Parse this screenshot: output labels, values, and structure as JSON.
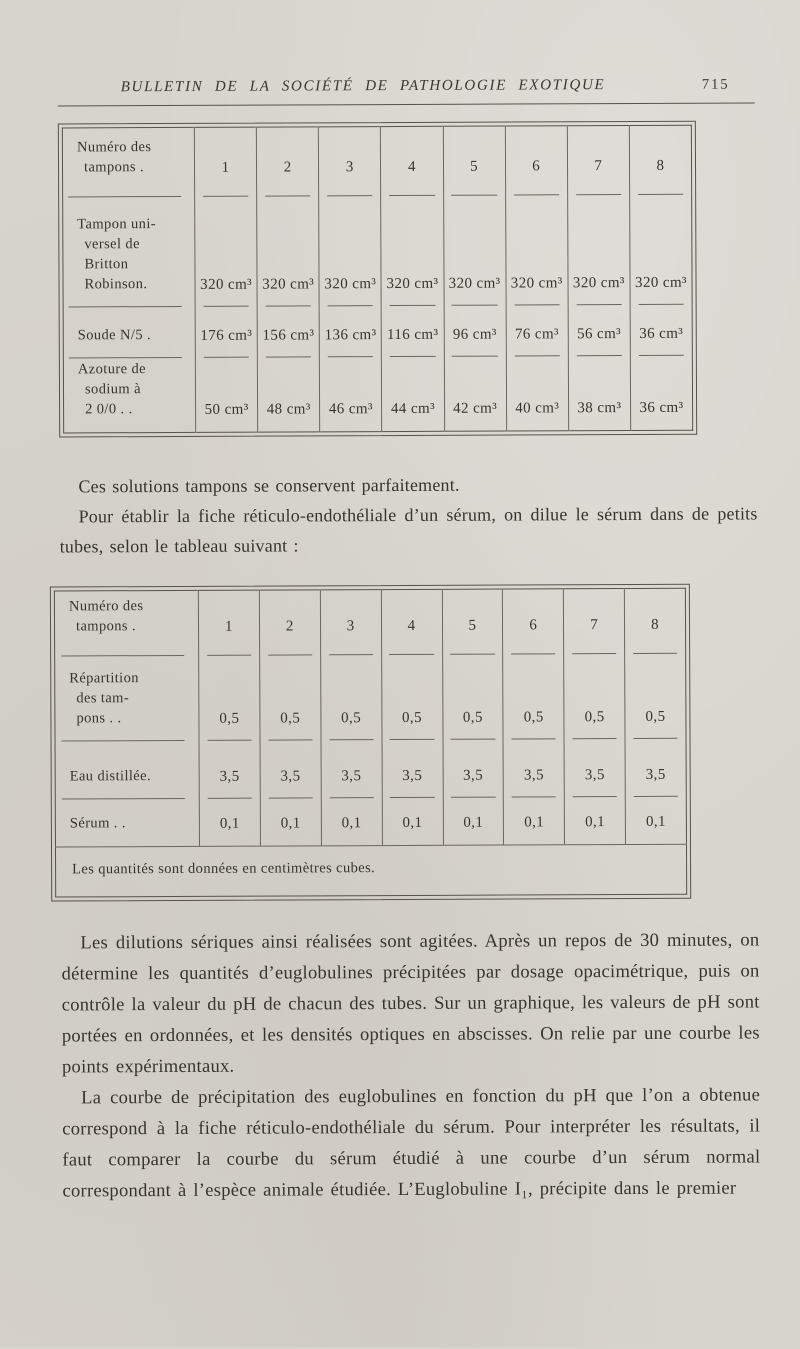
{
  "header": {
    "journal_title": "BULLETIN DE LA SOCIÉTÉ DE PATHOLOGIE EXOTIQUE",
    "page_number": "715"
  },
  "table1": {
    "header_label": "Numéro des\ntampons .",
    "columns": [
      "1",
      "2",
      "3",
      "4",
      "5",
      "6",
      "7",
      "8"
    ],
    "rows": [
      {
        "label": "Tampon uni-\nversel de\nBritton\nRobinson.",
        "values": [
          "320 cm³",
          "320 cm³",
          "320 cm³",
          "320 cm³",
          "320 cm³",
          "320 cm³",
          "320 cm³",
          "320 cm³"
        ]
      },
      {
        "label": "Soude N/5 .",
        "values": [
          "176 cm³",
          "156 cm³",
          "136 cm³",
          "116 cm³",
          "96 cm³",
          "76 cm³",
          "56 cm³",
          "36 cm³"
        ]
      },
      {
        "label": "Azoture de\nsodium à\n2 0/0 .   .",
        "values": [
          "50 cm³",
          "48 cm³",
          "46 cm³",
          "44 cm³",
          "42 cm³",
          "40 cm³",
          "38 cm³",
          "36 cm³"
        ]
      }
    ]
  },
  "paragraphs_mid": [
    "Ces solutions tampons se conservent parfaitement.",
    "Pour établir la fiche réticulo-endothéliale d’un sérum, on dilue le sérum dans de petits tubes, selon le tableau suivant :"
  ],
  "table2": {
    "header_label": "Numéro des\ntampons .",
    "columns": [
      "1",
      "2",
      "3",
      "4",
      "5",
      "6",
      "7",
      "8"
    ],
    "rows": [
      {
        "label": "Répartition\ndes tam-\npons .   .",
        "values": [
          "0,5",
          "0,5",
          "0,5",
          "0,5",
          "0,5",
          "0,5",
          "0,5",
          "0,5"
        ]
      },
      {
        "label": "Eau distillée.",
        "values": [
          "3,5",
          "3,5",
          "3,5",
          "3,5",
          "3,5",
          "3,5",
          "3,5",
          "3,5"
        ]
      },
      {
        "label": "Sérum .   .",
        "values": [
          "0,1",
          "0,1",
          "0,1",
          "0,1",
          "0,1",
          "0,1",
          "0,1",
          "0,1"
        ]
      }
    ],
    "footnote": "Les quantités sont données en centimètres cubes."
  },
  "paragraphs_bottom": [
    "Les dilutions sériques ainsi réalisées sont agitées. Après un repos de 30 minutes, on détermine les quantités d’euglobulines précipitées par dosage opacimétrique, puis on contrôle la valeur du pH de chacun des tubes. Sur un graphique, les valeurs de pH sont portées en ordonnées, et les densités optiques en abscisses. On relie par une courbe les points expérimentaux.",
    "La courbe de précipitation des euglobulines en fonction du pH que l’on a obtenue correspond à la fiche réticulo-endothéliale du sérum. Pour interpréter les résultats, il faut comparer la courbe du sérum étudié à une courbe d’un sérum normal correspondant à l’espèce animale étudiée. L’Euglobuline I₁, précipite dans le premier"
  ]
}
